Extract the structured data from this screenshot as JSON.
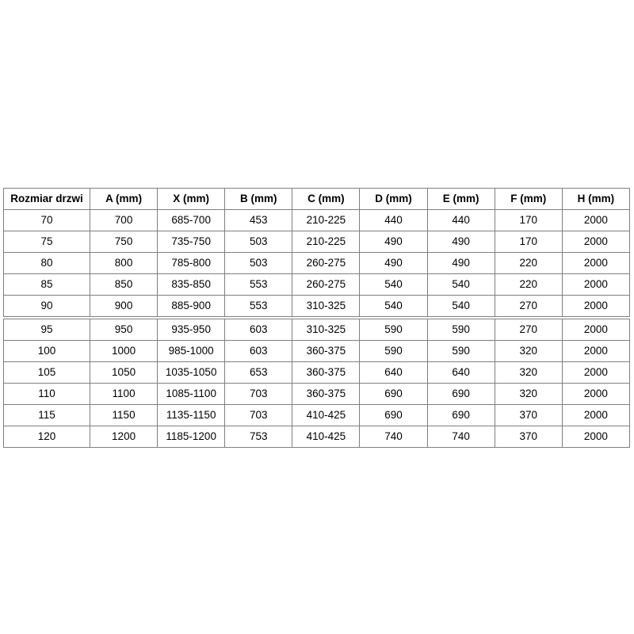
{
  "table": {
    "headers": [
      "Rozmiar drzwi",
      "A (mm)",
      "X (mm)",
      "B (mm)",
      "C (mm)",
      "D (mm)",
      "E (mm)",
      "F (mm)",
      "H (mm)"
    ],
    "rows": [
      [
        "70",
        "700",
        "685-700",
        "453",
        "210-225",
        "440",
        "440",
        "170",
        "2000"
      ],
      [
        "75",
        "750",
        "735-750",
        "503",
        "210-225",
        "490",
        "490",
        "170",
        "2000"
      ],
      [
        "80",
        "800",
        "785-800",
        "503",
        "260-275",
        "490",
        "490",
        "220",
        "2000"
      ],
      [
        "85",
        "850",
        "835-850",
        "553",
        "260-275",
        "540",
        "540",
        "220",
        "2000"
      ],
      [
        "90",
        "900",
        "885-900",
        "553",
        "310-325",
        "540",
        "540",
        "270",
        "2000"
      ],
      [
        "95",
        "950",
        "935-950",
        "603",
        "310-325",
        "590",
        "590",
        "270",
        "2000"
      ],
      [
        "100",
        "1000",
        "985-1000",
        "603",
        "360-375",
        "590",
        "590",
        "320",
        "2000"
      ],
      [
        "105",
        "1050",
        "1035-1050",
        "653",
        "360-375",
        "640",
        "640",
        "320",
        "2000"
      ],
      [
        "110",
        "1100",
        "1085-1100",
        "703",
        "360-375",
        "690",
        "690",
        "320",
        "2000"
      ],
      [
        "115",
        "1150",
        "1135-1150",
        "703",
        "410-425",
        "690",
        "690",
        "370",
        "2000"
      ],
      [
        "120",
        "1200",
        "1185-1200",
        "753",
        "410-425",
        "740",
        "740",
        "370",
        "2000"
      ]
    ],
    "colors": {
      "border": "#7f7f7f",
      "text": "#000000",
      "background": "#ffffff"
    }
  }
}
